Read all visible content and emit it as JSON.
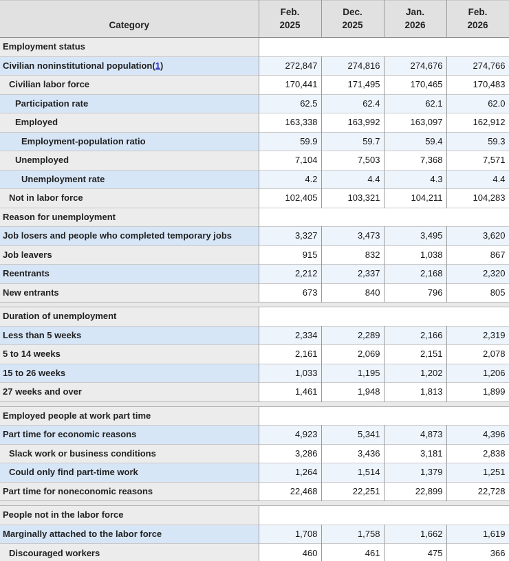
{
  "table": {
    "category_header": "Category",
    "column_headers": [
      {
        "month": "Feb.",
        "year": "2025"
      },
      {
        "month": "Dec.",
        "year": "2025"
      },
      {
        "month": "Jan.",
        "year": "2026"
      },
      {
        "month": "Feb.",
        "year": "2026"
      }
    ],
    "sections": [
      {
        "title": "Employment status",
        "spacer_before": false,
        "rows": [
          {
            "label": "Civilian noninstitutional population",
            "footnote": "1",
            "indent": 0,
            "values": [
              "272,847",
              "274,816",
              "274,676",
              "274,766"
            ]
          },
          {
            "label": "Civilian labor force",
            "indent": 1,
            "values": [
              "170,441",
              "171,495",
              "170,465",
              "170,483"
            ]
          },
          {
            "label": "Participation rate",
            "indent": 2,
            "values": [
              "62.5",
              "62.4",
              "62.1",
              "62.0"
            ]
          },
          {
            "label": "Employed",
            "indent": 2,
            "values": [
              "163,338",
              "163,992",
              "163,097",
              "162,912"
            ]
          },
          {
            "label": "Employment-population ratio",
            "indent": 3,
            "values": [
              "59.9",
              "59.7",
              "59.4",
              "59.3"
            ]
          },
          {
            "label": "Unemployed",
            "indent": 2,
            "values": [
              "7,104",
              "7,503",
              "7,368",
              "7,571"
            ]
          },
          {
            "label": "Unemployment rate",
            "indent": 3,
            "values": [
              "4.2",
              "4.4",
              "4.3",
              "4.4"
            ]
          },
          {
            "label": "Not in labor force",
            "indent": 1,
            "values": [
              "102,405",
              "103,321",
              "104,211",
              "104,283"
            ]
          }
        ]
      },
      {
        "title": "Reason for unemployment",
        "spacer_before": false,
        "rows": [
          {
            "label": "Job losers and people who completed temporary jobs",
            "indent": 0,
            "values": [
              "3,327",
              "3,473",
              "3,495",
              "3,620"
            ]
          },
          {
            "label": "Job leavers",
            "indent": 0,
            "values": [
              "915",
              "832",
              "1,038",
              "867"
            ]
          },
          {
            "label": "Reentrants",
            "indent": 0,
            "values": [
              "2,212",
              "2,337",
              "2,168",
              "2,320"
            ]
          },
          {
            "label": "New entrants",
            "indent": 0,
            "values": [
              "673",
              "840",
              "796",
              "805"
            ]
          }
        ]
      },
      {
        "title": "Duration of unemployment",
        "spacer_before": true,
        "rows": [
          {
            "label": "Less than 5 weeks",
            "indent": 0,
            "values": [
              "2,334",
              "2,289",
              "2,166",
              "2,319"
            ]
          },
          {
            "label": "5 to 14 weeks",
            "indent": 0,
            "values": [
              "2,161",
              "2,069",
              "2,151",
              "2,078"
            ]
          },
          {
            "label": "15 to 26 weeks",
            "indent": 0,
            "values": [
              "1,033",
              "1,195",
              "1,202",
              "1,206"
            ]
          },
          {
            "label": "27 weeks and over",
            "indent": 0,
            "values": [
              "1,461",
              "1,948",
              "1,813",
              "1,899"
            ]
          }
        ]
      },
      {
        "title": "Employed people at work part time",
        "spacer_before": true,
        "rows": [
          {
            "label": "Part time for economic reasons",
            "indent": 0,
            "values": [
              "4,923",
              "5,341",
              "4,873",
              "4,396"
            ]
          },
          {
            "label": "Slack work or business conditions",
            "indent": 1,
            "values": [
              "3,286",
              "3,436",
              "3,181",
              "2,838"
            ]
          },
          {
            "label": "Could only find part-time work",
            "indent": 1,
            "values": [
              "1,264",
              "1,514",
              "1,379",
              "1,251"
            ]
          },
          {
            "label": "Part time for noneconomic reasons",
            "indent": 0,
            "values": [
              "22,468",
              "22,251",
              "22,899",
              "22,728"
            ]
          }
        ]
      },
      {
        "title": "People not in the labor force",
        "spacer_before": true,
        "rows": [
          {
            "label": "Marginally attached to the labor force",
            "indent": 0,
            "values": [
              "1,708",
              "1,758",
              "1,662",
              "1,619"
            ]
          },
          {
            "label": "Discouraged workers",
            "indent": 1,
            "values": [
              "460",
              "461",
              "475",
              "366"
            ]
          }
        ]
      }
    ],
    "colors": {
      "row_blue_label": "#d7e6f7",
      "row_blue_value": "#eef4fc",
      "row_gray": "#ececec",
      "header_bg": "#e1e1e1",
      "link_blue": "#3333cc"
    }
  }
}
